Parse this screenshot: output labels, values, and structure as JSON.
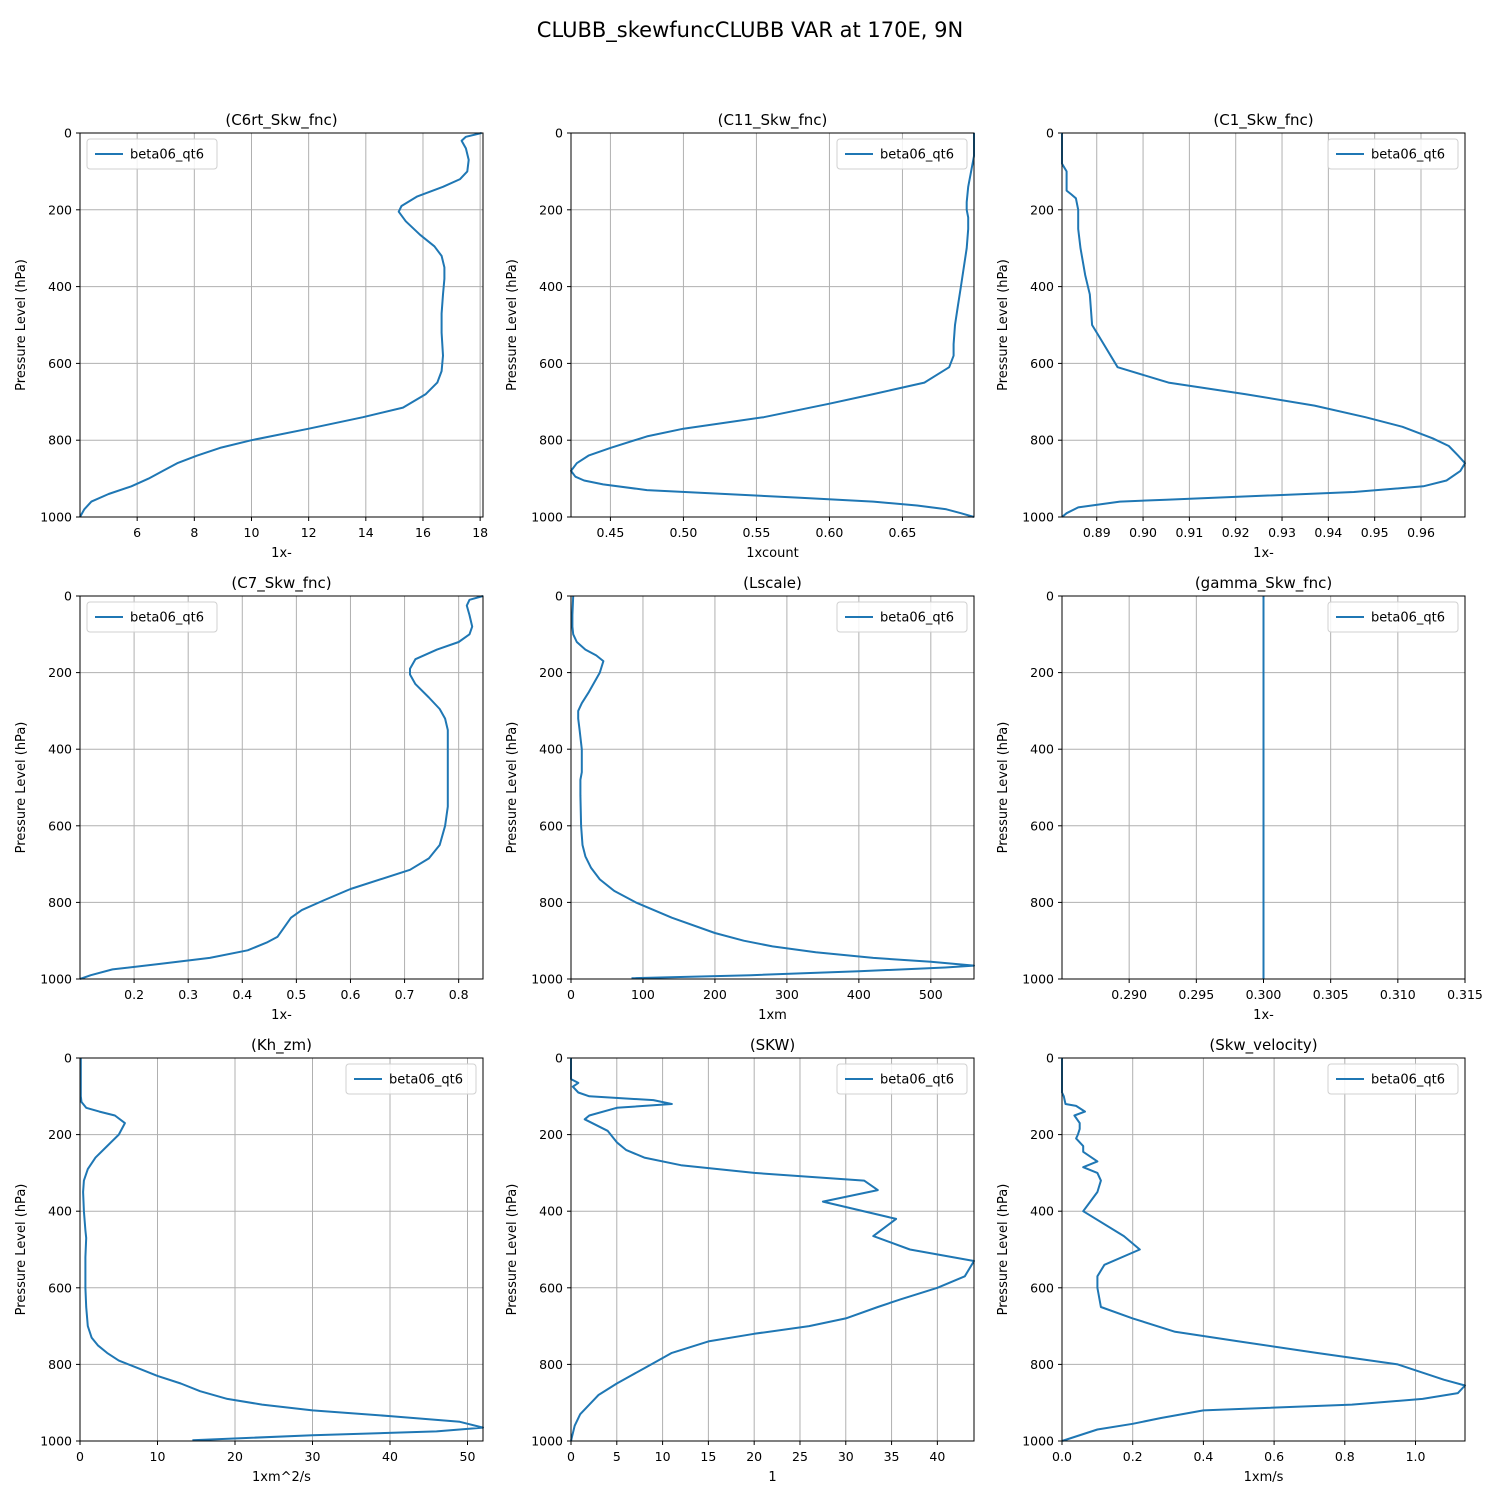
{
  "figure_title": "CLUBB_skewfuncCLUBB VAR at 170E, 9N",
  "series_color": "#1f77b4",
  "chart_data": [
    {
      "type": "line",
      "title": "(C6rt_Skw_fnc)",
      "xlabel": "1x-",
      "ylabel": "Pressure Level (hPa)",
      "xlim": [
        4.0,
        18.1
      ],
      "ylim": [
        1000,
        0
      ],
      "xticks": [
        6,
        8,
        10,
        12,
        14,
        16,
        18
      ],
      "yticks": [
        0,
        200,
        400,
        600,
        800,
        1000
      ],
      "grid": true,
      "legend": "top-left",
      "series": [
        {
          "name": "beta06_qt6",
          "x": [
            18.05,
            17.5,
            17.35,
            17.5,
            17.6,
            17.55,
            17.3,
            16.7,
            15.8,
            15.25,
            15.15,
            15.4,
            15.9,
            16.4,
            16.65,
            16.75,
            16.75,
            16.7,
            16.65,
            16.65,
            16.7,
            16.65,
            16.5,
            16.1,
            15.3,
            13.9,
            12.0,
            10.0,
            8.9,
            8.1,
            7.4,
            6.9,
            6.4,
            5.8,
            5.0,
            4.4,
            4.15,
            4.0
          ],
          "y": [
            0,
            10,
            20,
            40,
            70,
            100,
            120,
            140,
            165,
            190,
            205,
            230,
            265,
            295,
            320,
            350,
            380,
            420,
            470,
            520,
            580,
            620,
            650,
            680,
            715,
            740,
            770,
            800,
            820,
            840,
            860,
            880,
            900,
            920,
            940,
            960,
            980,
            1000
          ]
        }
      ]
    },
    {
      "type": "line",
      "title": "(C11_Skw_fnc)",
      "xlabel": "1xcount",
      "ylabel": "Pressure Level (hPa)",
      "xlim": [
        0.423,
        0.699
      ],
      "ylim": [
        1000,
        0
      ],
      "xticks": [
        0.45,
        0.5,
        0.55,
        0.6,
        0.65
      ],
      "tick_labels": [
        "0.45",
        "0.50",
        "0.55",
        "0.60",
        "0.65"
      ],
      "yticks": [
        0,
        200,
        400,
        600,
        800,
        1000
      ],
      "grid": true,
      "legend": "top-right",
      "series": [
        {
          "name": "beta06_qt6",
          "x": [
            0.699,
            0.699,
            0.697,
            0.695,
            0.694,
            0.694,
            0.695,
            0.695,
            0.694,
            0.692,
            0.69,
            0.688,
            0.686,
            0.685,
            0.685,
            0.685,
            0.682,
            0.665,
            0.63,
            0.6,
            0.555,
            0.5,
            0.475,
            0.45,
            0.435,
            0.427,
            0.423,
            0.426,
            0.432,
            0.445,
            0.475,
            0.58,
            0.63,
            0.66,
            0.68,
            0.69,
            0.699
          ],
          "y": [
            0,
            60,
            100,
            140,
            180,
            200,
            220,
            250,
            300,
            350,
            400,
            450,
            500,
            550,
            575,
            580,
            610,
            650,
            680,
            705,
            740,
            770,
            790,
            820,
            840,
            860,
            880,
            895,
            905,
            915,
            930,
            950,
            960,
            970,
            980,
            990,
            1000
          ]
        }
      ]
    },
    {
      "type": "line",
      "title": "(C1_Skw_fnc)",
      "xlabel": "1x-",
      "ylabel": "Pressure Level (hPa)",
      "xlim": [
        0.8825,
        0.9695
      ],
      "ylim": [
        1000,
        0
      ],
      "xticks": [
        0.89,
        0.9,
        0.91,
        0.92,
        0.93,
        0.94,
        0.95,
        0.96
      ],
      "tick_labels": [
        "0.89",
        "0.90",
        "0.91",
        "0.92",
        "0.93",
        "0.94",
        "0.95",
        "0.96"
      ],
      "yticks": [
        0,
        200,
        400,
        600,
        800,
        1000
      ],
      "grid": true,
      "legend": "top-right",
      "series": [
        {
          "name": "beta06_qt6",
          "x": [
            0.8825,
            0.8825,
            0.8835,
            0.8835,
            0.8845,
            0.8855,
            0.886,
            0.886,
            0.8865,
            0.8875,
            0.8885,
            0.889,
            0.8905,
            0.8945,
            0.9055,
            0.922,
            0.937,
            0.948,
            0.956,
            0.9625,
            0.966,
            0.968,
            0.9695,
            0.9685,
            0.9655,
            0.9605,
            0.9455,
            0.925,
            0.905,
            0.895,
            0.886,
            0.8835,
            0.8825
          ],
          "y": [
            0,
            80,
            100,
            150,
            160,
            170,
            200,
            250,
            300,
            370,
            420,
            500,
            530,
            610,
            650,
            680,
            710,
            740,
            765,
            795,
            815,
            840,
            860,
            880,
            905,
            920,
            935,
            945,
            955,
            960,
            975,
            990,
            1000
          ]
        }
      ]
    },
    {
      "type": "line",
      "title": "(C7_Skw_fnc)",
      "xlabel": "1x-",
      "ylabel": "Pressure Level (hPa)",
      "xlim": [
        0.1,
        0.845
      ],
      "ylim": [
        1000,
        0
      ],
      "xticks": [
        0.2,
        0.3,
        0.4,
        0.5,
        0.6,
        0.7,
        0.8
      ],
      "tick_labels": [
        "0.2",
        "0.3",
        "0.4",
        "0.5",
        "0.6",
        "0.7",
        "0.8"
      ],
      "yticks": [
        0,
        200,
        400,
        600,
        800,
        1000
      ],
      "grid": true,
      "legend": "top-left",
      "series": [
        {
          "name": "beta06_qt6",
          "x": [
            0.845,
            0.82,
            0.815,
            0.82,
            0.825,
            0.82,
            0.8,
            0.76,
            0.72,
            0.71,
            0.71,
            0.72,
            0.745,
            0.765,
            0.775,
            0.78,
            0.78,
            0.78,
            0.78,
            0.775,
            0.765,
            0.745,
            0.71,
            0.6,
            0.55,
            0.51,
            0.49,
            0.475,
            0.465,
            0.445,
            0.41,
            0.34,
            0.25,
            0.16,
            0.12,
            0.1
          ],
          "y": [
            0,
            10,
            25,
            50,
            80,
            100,
            120,
            140,
            165,
            190,
            205,
            230,
            265,
            295,
            320,
            350,
            400,
            470,
            550,
            600,
            650,
            685,
            715,
            765,
            795,
            820,
            840,
            870,
            890,
            905,
            925,
            945,
            960,
            975,
            990,
            1000
          ]
        }
      ]
    },
    {
      "type": "line",
      "title": "(Lscale)",
      "xlabel": "1xm",
      "ylabel": "Pressure Level (hPa)",
      "xlim": [
        0,
        560
      ],
      "ylim": [
        1000,
        0
      ],
      "xticks": [
        0,
        100,
        200,
        300,
        400,
        500
      ],
      "yticks": [
        0,
        200,
        400,
        600,
        800,
        1000
      ],
      "grid": true,
      "legend": "top-right",
      "series": [
        {
          "name": "beta06_qt6",
          "x": [
            3,
            2,
            2,
            3,
            8,
            20,
            35,
            45,
            40,
            25,
            15,
            10,
            10,
            12,
            15,
            15,
            13,
            13,
            14,
            16,
            20,
            28,
            40,
            60,
            90,
            140,
            200,
            240,
            280,
            340,
            420,
            500,
            560,
            520,
            400,
            250,
            84
          ],
          "y": [
            0,
            50,
            80,
            100,
            120,
            140,
            155,
            170,
            200,
            250,
            280,
            300,
            320,
            350,
            400,
            460,
            480,
            520,
            600,
            650,
            680,
            710,
            740,
            770,
            800,
            840,
            880,
            900,
            915,
            930,
            945,
            955,
            965,
            970,
            980,
            990,
            998
          ]
        }
      ]
    },
    {
      "type": "line",
      "title": "(gamma_Skw_fnc)",
      "xlabel": "1x-",
      "ylabel": "Pressure Level (hPa)",
      "xlim": [
        0.285,
        0.315
      ],
      "ylim": [
        1000,
        0
      ],
      "xticks": [
        0.29,
        0.295,
        0.3,
        0.305,
        0.31,
        0.315
      ],
      "tick_labels": [
        "0.290",
        "0.295",
        "0.300",
        "0.305",
        "0.310",
        "0.315"
      ],
      "yticks": [
        0,
        200,
        400,
        600,
        800,
        1000
      ],
      "grid": true,
      "legend": "top-right",
      "series": [
        {
          "name": "beta06_qt6",
          "x": [
            0.3,
            0.3
          ],
          "y": [
            0,
            1000
          ]
        }
      ]
    },
    {
      "type": "line",
      "title": "(Kh_zm)",
      "xlabel": "1xm^2/s",
      "ylabel": "Pressure Level (hPa)",
      "xlim": [
        0,
        52
      ],
      "ylim": [
        1000,
        0
      ],
      "xticks": [
        0,
        10,
        20,
        30,
        40,
        50
      ],
      "yticks": [
        0,
        200,
        400,
        600,
        800,
        1000
      ],
      "grid": true,
      "legend": "top-right",
      "series": [
        {
          "name": "beta06_qt6",
          "x": [
            0.1,
            0.1,
            0.2,
            0.8,
            2.5,
            4.5,
            5.8,
            5.0,
            3.5,
            2.0,
            1.0,
            0.5,
            0.4,
            0.5,
            0.7,
            0.8,
            0.7,
            0.7,
            0.8,
            1.0,
            1.5,
            2.3,
            3.5,
            5.0,
            7.5,
            10.0,
            13.0,
            15.5,
            19.0,
            23.5,
            30.0,
            40.0,
            49.0,
            52.0,
            46.0,
            30.0,
            14.5
          ],
          "y": [
            0,
            100,
            115,
            130,
            140,
            150,
            170,
            200,
            230,
            260,
            290,
            320,
            350,
            400,
            450,
            470,
            520,
            600,
            650,
            700,
            730,
            750,
            770,
            790,
            810,
            830,
            850,
            870,
            890,
            905,
            920,
            935,
            950,
            965,
            975,
            985,
            998
          ]
        }
      ]
    },
    {
      "type": "line",
      "title": "(SKW)",
      "xlabel": "1",
      "ylabel": "Pressure Level (hPa)",
      "xlim": [
        0,
        44
      ],
      "ylim": [
        1000,
        0
      ],
      "xticks": [
        0,
        5,
        10,
        15,
        20,
        25,
        30,
        35,
        40
      ],
      "yticks": [
        0,
        200,
        400,
        600,
        800,
        1000
      ],
      "grid": true,
      "legend": "top-right",
      "series": [
        {
          "name": "beta06_qt6",
          "x": [
            0,
            0,
            0.8,
            0.2,
            0.8,
            2,
            9,
            11,
            5,
            2,
            1.5,
            4,
            5,
            6,
            8,
            12,
            20,
            32,
            33.5,
            27.5,
            35.5,
            33,
            37,
            44,
            43,
            40,
            36,
            33.5,
            30,
            26,
            20,
            15,
            13,
            11,
            9.5,
            8,
            6.5,
            5,
            3,
            1,
            0.4,
            0.1,
            0
          ],
          "y": [
            0,
            55,
            65,
            75,
            90,
            100,
            110,
            120,
            130,
            150,
            160,
            190,
            220,
            240,
            260,
            280,
            300,
            320,
            345,
            375,
            420,
            465,
            500,
            530,
            570,
            600,
            630,
            650,
            680,
            700,
            720,
            740,
            755,
            770,
            790,
            810,
            830,
            850,
            880,
            930,
            960,
            990,
            1000
          ]
        }
      ]
    },
    {
      "type": "line",
      "title": "(Skw_velocity)",
      "xlabel": "1xm/s",
      "ylabel": "Pressure Level (hPa)",
      "xlim": [
        0,
        1.14
      ],
      "ylim": [
        1000,
        0
      ],
      "xticks": [
        0.0,
        0.2,
        0.4,
        0.6,
        0.8,
        1.0
      ],
      "tick_labels": [
        "0.0",
        "0.2",
        "0.4",
        "0.6",
        "0.8",
        "1.0"
      ],
      "yticks": [
        0,
        200,
        400,
        600,
        800,
        1000
      ],
      "grid": true,
      "legend": "top-right",
      "series": [
        {
          "name": "beta06_qt6",
          "x": [
            0,
            0,
            0.005,
            0.01,
            0.04,
            0.065,
            0.035,
            0.05,
            0.05,
            0.045,
            0.04,
            0.06,
            0.06,
            0.1,
            0.06,
            0.1,
            0.11,
            0.1,
            0.08,
            0.06,
            0.175,
            0.22,
            0.12,
            0.1,
            0.1,
            0.11,
            0.2,
            0.32,
            0.5,
            0.72,
            0.95,
            1.08,
            1.14,
            1.12,
            1.02,
            0.82,
            0.4,
            0.28,
            0.2,
            0.1,
            0
          ],
          "y": [
            0,
            90,
            100,
            120,
            125,
            140,
            150,
            170,
            185,
            200,
            210,
            230,
            245,
            270,
            285,
            300,
            320,
            350,
            375,
            400,
            465,
            500,
            540,
            570,
            600,
            650,
            680,
            715,
            740,
            770,
            800,
            840,
            855,
            875,
            890,
            905,
            920,
            940,
            955,
            970,
            1000
          ]
        }
      ]
    }
  ]
}
